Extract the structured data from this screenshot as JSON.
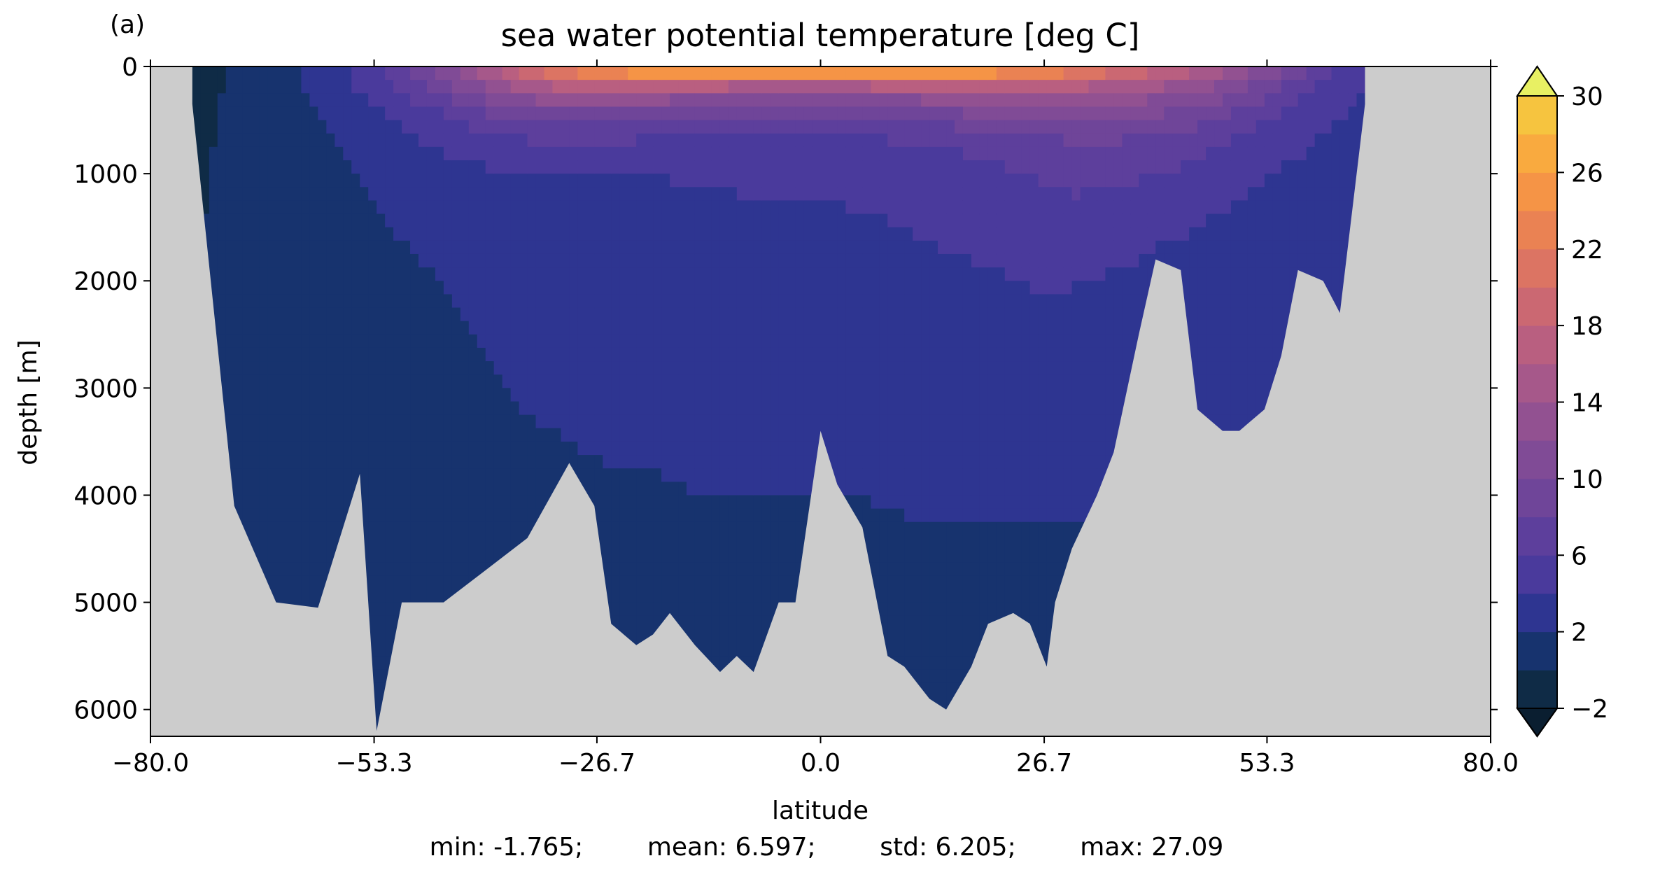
{
  "panel_label": "(a)",
  "stats": {
    "min": "min: -1.765;",
    "mean": "mean: 6.597;",
    "std": "std: 6.205;",
    "max": "max: 27.09"
  },
  "chart_data": {
    "type": "heatmap",
    "title": "sea water potential temperature [deg C]",
    "xlabel": "latitude",
    "ylabel": "depth [m]",
    "xlim": [
      -80.0,
      80.0
    ],
    "ylim": [
      6250,
      0
    ],
    "y_inverted": true,
    "x_ticks": [
      "−80.0",
      "−53.3",
      "−26.7",
      "0.0",
      "26.7",
      "53.3",
      "80.0"
    ],
    "x_tick_values": [
      -80.0,
      -53.3,
      -26.7,
      0.0,
      26.7,
      53.3,
      80.0
    ],
    "y_ticks": [
      "0",
      "1000",
      "2000",
      "3000",
      "4000",
      "5000",
      "6000"
    ],
    "y_tick_values": [
      0,
      1000,
      2000,
      3000,
      4000,
      5000,
      6000
    ],
    "missing_color": "#cccccc",
    "colorbar": {
      "levels": [
        -2,
        0,
        2,
        4,
        6,
        8,
        10,
        12,
        14,
        16,
        18,
        20,
        22,
        24,
        26,
        28,
        30
      ],
      "tick_labels": [
        "−2",
        "2",
        "6",
        "10",
        "14",
        "18",
        "22",
        "26",
        "30"
      ],
      "tick_values": [
        -2,
        2,
        6,
        10,
        14,
        18,
        22,
        26,
        30
      ],
      "colors": [
        "#0f2b46",
        "#17336e",
        "#2e3591",
        "#4a3a9c",
        "#5d3f9c",
        "#6f4599",
        "#804b96",
        "#925191",
        "#a6588a",
        "#b95f80",
        "#cb6872",
        "#dc7463",
        "#ea8253",
        "#f59446",
        "#f9aa3f",
        "#f6c43f",
        "#ecdc4c"
      ],
      "extend": "both",
      "under_color": "#0a1e30",
      "over_color": "#e8f063"
    },
    "bathymetry": {
      "lat": [
        -75,
        -70,
        -65,
        -60,
        -55,
        -53,
        -50,
        -45,
        -40,
        -35,
        -30,
        -27,
        -25,
        -22,
        -20,
        -18,
        -15,
        -12,
        -10,
        -8,
        -5,
        -3,
        0,
        2,
        5,
        8,
        10,
        13,
        15,
        18,
        20,
        23,
        25,
        27,
        28,
        30,
        33,
        35,
        38,
        40,
        43,
        45,
        48,
        50,
        53,
        55,
        57,
        60,
        62,
        65
      ],
      "depth": [
        350,
        4100,
        5000,
        5050,
        3800,
        6200,
        5000,
        5000,
        4700,
        4400,
        3700,
        4100,
        5200,
        5400,
        5300,
        5100,
        5400,
        5650,
        5500,
        5650,
        5000,
        5000,
        3400,
        3900,
        4300,
        5500,
        5600,
        5900,
        6000,
        5600,
        5200,
        5100,
        5200,
        5600,
        5000,
        4500,
        4000,
        3600,
        2500,
        1800,
        1900,
        3200,
        3400,
        3400,
        3200,
        2700,
        1900,
        2000,
        2300,
        350
      ]
    },
    "temperature_section": {
      "lat": [
        -78,
        -75,
        -70,
        -65,
        -60,
        -55,
        -50,
        -45,
        -40,
        -35,
        -30,
        -25,
        -20,
        -15,
        -10,
        -5,
        0,
        5,
        10,
        15,
        20,
        25,
        30,
        35,
        40,
        45,
        50,
        55,
        60,
        65,
        67
      ],
      "depth": [
        0,
        50,
        100,
        200,
        300,
        500,
        750,
        1000,
        1500,
        2000,
        3000,
        4000,
        5000,
        6250
      ],
      "values": [
        [
          -1.7,
          -1.2,
          0.2,
          1.2,
          2.6,
          4.6,
          8,
          12,
          16,
          20,
          23,
          25,
          26,
          26.5,
          27,
          27.5,
          28,
          27.8,
          27,
          26.5,
          26,
          25.5,
          24,
          22,
          20,
          18,
          15,
          12,
          8,
          5,
          2
        ],
        [
          -1.6,
          -1,
          0.2,
          1.3,
          2.6,
          4.5,
          7.5,
          11,
          15,
          19,
          22,
          24,
          25,
          25.5,
          26,
          26.5,
          27,
          26.8,
          26,
          25.5,
          25,
          24,
          22,
          20,
          18,
          16,
          13,
          10,
          6.5,
          4.5,
          2
        ],
        [
          -1.5,
          -1,
          0.2,
          1.3,
          2.5,
          4.4,
          7,
          10,
          14,
          17,
          20,
          22,
          23,
          23,
          22,
          22,
          22,
          22.5,
          22.5,
          22,
          21.5,
          21,
          20,
          18,
          16.5,
          14.5,
          12,
          9,
          6,
          4.5,
          2
        ],
        [
          -1.4,
          -0.8,
          0.3,
          1.3,
          2.4,
          4.2,
          6.5,
          9,
          12,
          14.5,
          16.5,
          17,
          17,
          16,
          15,
          15,
          14.5,
          15,
          15.5,
          16,
          16.5,
          16.5,
          16,
          15,
          14,
          12.5,
          10.5,
          8,
          5.5,
          4,
          2
        ],
        [
          -1.3,
          -0.6,
          0.3,
          1.2,
          2.2,
          3.8,
          5.5,
          7.5,
          10,
          12,
          13,
          13,
          12.5,
          12,
          11,
          11,
          11,
          11.5,
          12,
          12.5,
          13,
          13.5,
          13.5,
          13,
          12,
          11,
          9.5,
          7,
          5,
          3.8,
          2
        ],
        [
          -1.2,
          -0.5,
          0.3,
          1,
          1.8,
          3,
          4.3,
          5.5,
          7,
          8,
          8.5,
          8.5,
          8,
          7.5,
          7,
          7,
          7,
          7.5,
          8,
          8.5,
          9,
          9.5,
          10,
          10,
          9.5,
          8.5,
          7,
          5.5,
          4.2,
          3.5,
          2
        ],
        [
          -1,
          -0.3,
          0.3,
          0.9,
          1.5,
          2.4,
          3.3,
          4.2,
          5,
          5.4,
          5.5,
          5.4,
          5.2,
          5,
          4.8,
          4.8,
          4.8,
          5.2,
          5.6,
          6,
          6.5,
          7,
          7.5,
          7.5,
          7,
          6.5,
          5.5,
          4.5,
          3.8,
          3.2,
          2
        ],
        [
          -0.9,
          -0.2,
          0.3,
          0.8,
          1.3,
          2,
          2.7,
          3.3,
          3.7,
          3.9,
          4,
          4,
          4,
          4.2,
          4.3,
          4.3,
          4.3,
          4.5,
          4.8,
          5.2,
          5.6,
          6,
          6.5,
          6.5,
          6,
          5.5,
          4.6,
          3.8,
          3.4,
          3,
          2
        ],
        [
          -0.8,
          -0.1,
          0.3,
          0.7,
          1.1,
          1.6,
          2.1,
          2.5,
          2.8,
          3,
          3.1,
          3.2,
          3.3,
          3.4,
          3.5,
          3.5,
          3.6,
          3.8,
          4,
          4.3,
          4.6,
          5,
          5.2,
          5,
          4.4,
          4,
          3.4,
          3,
          3,
          2.8,
          2
        ],
        [
          -0.7,
          -0.1,
          0.3,
          0.6,
          0.9,
          1.3,
          1.7,
          2,
          2.3,
          2.5,
          2.6,
          2.7,
          2.8,
          2.9,
          2.9,
          3,
          3,
          3.2,
          3.4,
          3.6,
          3.8,
          4.1,
          4.1,
          3.8,
          3.4,
          3.1,
          2.8,
          2.7,
          2.7,
          2.6,
          2
        ],
        [
          -0.6,
          -0.2,
          0.2,
          0.5,
          0.7,
          1,
          1.3,
          1.6,
          1.9,
          2.1,
          2.2,
          2.3,
          2.3,
          2.4,
          2.4,
          2.4,
          2.4,
          2.5,
          2.6,
          2.7,
          2.8,
          2.9,
          2.8,
          2.7,
          2.6,
          2.5,
          2.4,
          2.3,
          2.3,
          2.2,
          2
        ],
        [
          -0.6,
          -0.3,
          0.1,
          0.4,
          0.6,
          0.8,
          1,
          1.3,
          1.5,
          1.7,
          1.8,
          1.9,
          1.9,
          2,
          2,
          2,
          2,
          2,
          2.1,
          2.1,
          2.1,
          2.1,
          2.1,
          2.1,
          2.1,
          2.1,
          2.1,
          2.1,
          2.1,
          2.1,
          2
        ],
        [
          -0.6,
          -0.4,
          0,
          0.3,
          0.5,
          0.6,
          0.8,
          1,
          1.2,
          1.4,
          1.5,
          1.6,
          1.6,
          1.6,
          1.6,
          1.6,
          1.6,
          1.6,
          1.6,
          1.6,
          1.7,
          1.7,
          1.7,
          1.7,
          1.7,
          1.7,
          1.7,
          1.7,
          1.7,
          1.7,
          1.7
        ],
        [
          -0.6,
          -0.5,
          -0.1,
          0.2,
          0.4,
          0.5,
          0.6,
          0.8,
          1,
          1.2,
          1.3,
          1.4,
          1.4,
          1.4,
          1.4,
          1.4,
          1.4,
          1.4,
          1.4,
          1.4,
          1.5,
          1.5,
          1.5,
          1.5,
          1.5,
          1.5,
          1.5,
          1.5,
          1.5,
          1.5,
          1.5
        ]
      ]
    }
  }
}
